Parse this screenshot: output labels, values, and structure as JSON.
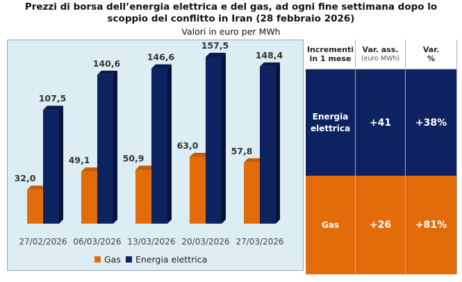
{
  "title_line1": "Prezzi di borsa dell’energia elettrica e del gas, ad ogni fine settimana dopo lo",
  "title_line2": "scoppio del conflitto in Iran (28 febbraio 2026)",
  "subtitle": "Valori in euro per MWh",
  "colors": {
    "gas": "#e36c0a",
    "energia": "#0d2260",
    "panel": "#dcedf3"
  },
  "chart_data": {
    "type": "bar",
    "title": "Prezzi di borsa dell’energia elettrica e del gas, ad ogni fine settimana dopo lo scoppio del conflitto in Iran (28 febbraio 2026)",
    "subtitle": "Valori in euro per MWh",
    "categories": [
      "27/02/2026",
      "06/03/2026",
      "13/03/2026",
      "20/03/2026",
      "27/03/2026"
    ],
    "series": [
      {
        "name": "Gas",
        "values": [
          32.0,
          49.1,
          50.9,
          63.0,
          57.8
        ],
        "labels": [
          "32,0",
          "49,1",
          "50,9",
          "63,0",
          "57,8"
        ]
      },
      {
        "name": "Energia elettrica",
        "values": [
          107.5,
          140.6,
          146.6,
          157.5,
          148.4
        ],
        "labels": [
          "107,5",
          "140,6",
          "146,6",
          "157,5",
          "148,4"
        ]
      }
    ],
    "ylim": [
      0,
      160
    ],
    "legend": "bottom",
    "grid": false
  },
  "table": {
    "headers": {
      "col1_l1": "Incrementi",
      "col1_l2": "in 1 mese",
      "col2_l1": "Var. ass.",
      "col2_l2": "(euro MWh)",
      "col3_l1": "Var.",
      "col3_l2": "%"
    },
    "rows": [
      {
        "label_l1": "Energia",
        "label_l2": "elettrica",
        "abs": "+41",
        "pct": "+38%"
      },
      {
        "label_l1": "Gas",
        "label_l2": "",
        "abs": "+26",
        "pct": "+81%"
      }
    ]
  }
}
